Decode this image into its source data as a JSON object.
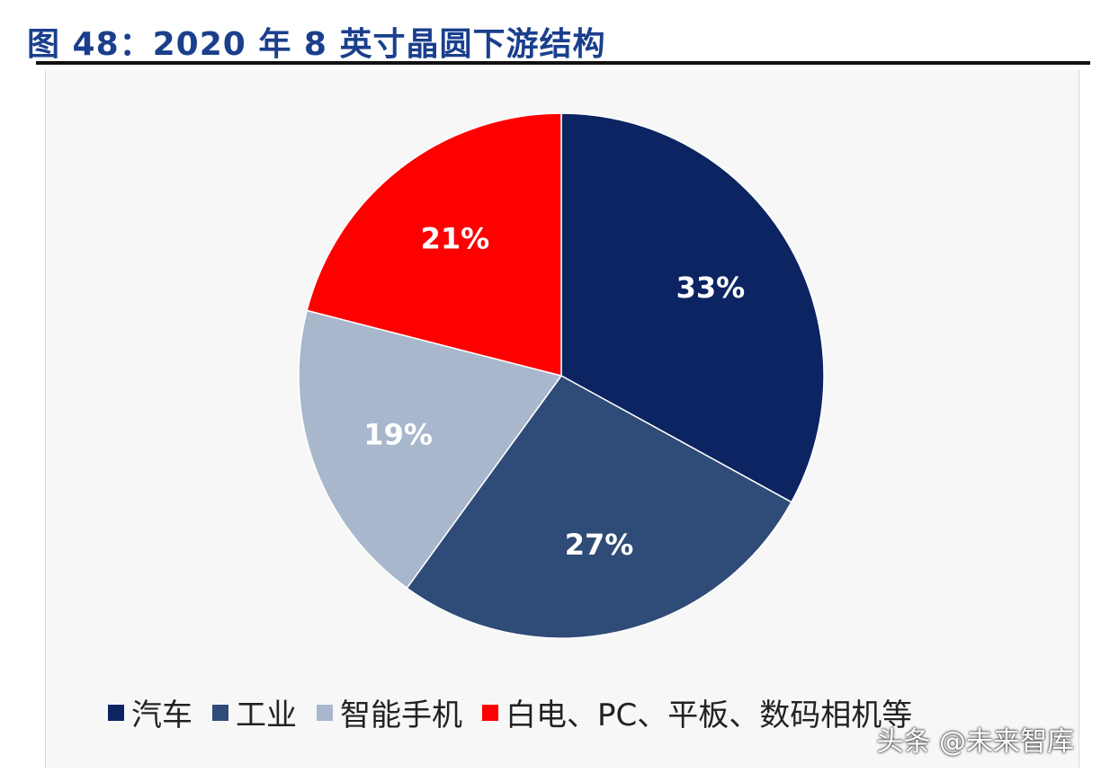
{
  "figure": {
    "title": "图 48：2020 年 8 英寸晶圆下游结构",
    "watermark": "头条 @未来智库"
  },
  "chart_data": {
    "type": "pie",
    "title": "",
    "categories": [
      "汽车",
      "工业",
      "智能手机",
      "白电、PC、平板、数码相机等"
    ],
    "values": [
      33,
      27,
      19,
      21
    ],
    "value_labels": [
      "33%",
      "27%",
      "19%",
      "21%"
    ],
    "colors": [
      "#0c2461",
      "#2f4b77",
      "#a9b7cc",
      "#ff0000"
    ],
    "start": "12 o'clock",
    "direction": "clockwise",
    "legend_position": "bottom",
    "data_labels": "inside"
  }
}
